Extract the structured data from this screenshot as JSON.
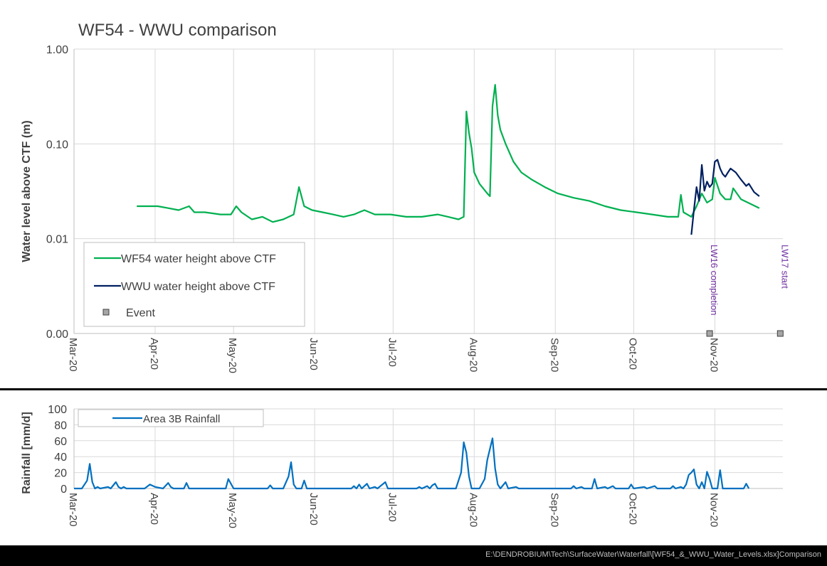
{
  "chart_data": [
    {
      "type": "line",
      "title": "WF54 - WWU comparison",
      "ylabel": "Water level above CTF (m)",
      "xlabel": "",
      "y_scale": "log",
      "ylim": [
        0.001,
        1.0
      ],
      "y_ticks": [
        {
          "value": 1.0,
          "label": "1.00"
        },
        {
          "value": 0.1,
          "label": "0.10"
        },
        {
          "value": 0.01,
          "label": "0.01"
        },
        {
          "value": 0.001,
          "label": "0.00"
        }
      ],
      "xlim": [
        "2020-03-01",
        "2020-11-27"
      ],
      "x_ticks": [
        {
          "date": "2020-03-01",
          "label": "Mar-20"
        },
        {
          "date": "2020-04-01",
          "label": "Apr-20"
        },
        {
          "date": "2020-05-01",
          "label": "May-20"
        },
        {
          "date": "2020-06-01",
          "label": "Jun-20"
        },
        {
          "date": "2020-07-01",
          "label": "Jul-20"
        },
        {
          "date": "2020-08-01",
          "label": "Aug-20"
        },
        {
          "date": "2020-09-01",
          "label": "Sep-20"
        },
        {
          "date": "2020-10-01",
          "label": "Oct-20"
        },
        {
          "date": "2020-11-01",
          "label": "Nov-20"
        }
      ],
      "grid": true,
      "legend_position": "bottom-left",
      "series": [
        {
          "name": "WF54 water height above CTF",
          "color": "#00b050",
          "points": [
            [
              "2020-03-25",
              0.022
            ],
            [
              "2020-03-29",
              0.022
            ],
            [
              "2020-04-02",
              0.022
            ],
            [
              "2020-04-06",
              0.021
            ],
            [
              "2020-04-10",
              0.02
            ],
            [
              "2020-04-14",
              0.022
            ],
            [
              "2020-04-16",
              0.019
            ],
            [
              "2020-04-20",
              0.019
            ],
            [
              "2020-04-26",
              0.018
            ],
            [
              "2020-04-30",
              0.018
            ],
            [
              "2020-05-02",
              0.022
            ],
            [
              "2020-05-04",
              0.019
            ],
            [
              "2020-05-08",
              0.016
            ],
            [
              "2020-05-12",
              0.017
            ],
            [
              "2020-05-16",
              0.015
            ],
            [
              "2020-05-20",
              0.016
            ],
            [
              "2020-05-24",
              0.018
            ],
            [
              "2020-05-26",
              0.035
            ],
            [
              "2020-05-28",
              0.022
            ],
            [
              "2020-05-31",
              0.02
            ],
            [
              "2020-06-04",
              0.019
            ],
            [
              "2020-06-08",
              0.018
            ],
            [
              "2020-06-12",
              0.017
            ],
            [
              "2020-06-16",
              0.018
            ],
            [
              "2020-06-20",
              0.02
            ],
            [
              "2020-06-24",
              0.018
            ],
            [
              "2020-06-30",
              0.018
            ],
            [
              "2020-07-06",
              0.017
            ],
            [
              "2020-07-12",
              0.017
            ],
            [
              "2020-07-18",
              0.018
            ],
            [
              "2020-07-22",
              0.017
            ],
            [
              "2020-07-26",
              0.016
            ],
            [
              "2020-07-28",
              0.017
            ],
            [
              "2020-07-29",
              0.22
            ],
            [
              "2020-07-30",
              0.13
            ],
            [
              "2020-07-31",
              0.09
            ],
            [
              "2020-08-01",
              0.05
            ],
            [
              "2020-08-03",
              0.038
            ],
            [
              "2020-08-06",
              0.03
            ],
            [
              "2020-08-07",
              0.028
            ],
            [
              "2020-08-08",
              0.25
            ],
            [
              "2020-08-09",
              0.42
            ],
            [
              "2020-08-10",
              0.2
            ],
            [
              "2020-08-11",
              0.14
            ],
            [
              "2020-08-13",
              0.1
            ],
            [
              "2020-08-16",
              0.065
            ],
            [
              "2020-08-19",
              0.05
            ],
            [
              "2020-08-23",
              0.042
            ],
            [
              "2020-08-28",
              0.035
            ],
            [
              "2020-09-02",
              0.03
            ],
            [
              "2020-09-08",
              0.027
            ],
            [
              "2020-09-14",
              0.025
            ],
            [
              "2020-09-20",
              0.022
            ],
            [
              "2020-09-26",
              0.02
            ],
            [
              "2020-10-02",
              0.019
            ],
            [
              "2020-10-08",
              0.018
            ],
            [
              "2020-10-14",
              0.017
            ],
            [
              "2020-10-18",
              0.017
            ],
            [
              "2020-10-19",
              0.029
            ],
            [
              "2020-10-20",
              0.019
            ],
            [
              "2020-10-23",
              0.017
            ],
            [
              "2020-10-25",
              0.022
            ],
            [
              "2020-10-27",
              0.03
            ],
            [
              "2020-10-29",
              0.024
            ],
            [
              "2020-10-31",
              0.026
            ],
            [
              "2020-11-01",
              0.044
            ],
            [
              "2020-11-03",
              0.03
            ],
            [
              "2020-11-05",
              0.026
            ],
            [
              "2020-11-07",
              0.026
            ],
            [
              "2020-11-08",
              0.034
            ],
            [
              "2020-11-11",
              0.026
            ],
            [
              "2020-11-15",
              0.023
            ],
            [
              "2020-11-18",
              0.021
            ]
          ]
        },
        {
          "name": "WWU water height above CTF",
          "color": "#002060",
          "points": [
            [
              "2020-10-23",
              0.011
            ],
            [
              "2020-10-24",
              0.02
            ],
            [
              "2020-10-25",
              0.035
            ],
            [
              "2020-10-26",
              0.025
            ],
            [
              "2020-10-27",
              0.06
            ],
            [
              "2020-10-28",
              0.032
            ],
            [
              "2020-10-29",
              0.04
            ],
            [
              "2020-10-30",
              0.035
            ],
            [
              "2020-10-31",
              0.038
            ],
            [
              "2020-11-01",
              0.065
            ],
            [
              "2020-11-02",
              0.068
            ],
            [
              "2020-11-03",
              0.055
            ],
            [
              "2020-11-04",
              0.048
            ],
            [
              "2020-11-05",
              0.045
            ],
            [
              "2020-11-06",
              0.05
            ],
            [
              "2020-11-07",
              0.055
            ],
            [
              "2020-11-09",
              0.05
            ],
            [
              "2020-11-11",
              0.042
            ],
            [
              "2020-11-13",
              0.036
            ],
            [
              "2020-11-14",
              0.038
            ],
            [
              "2020-11-16",
              0.031
            ],
            [
              "2020-11-18",
              0.028
            ]
          ]
        },
        {
          "name": "Event",
          "color": "#a6a6a6",
          "marker": "square",
          "points": [
            [
              "2020-10-30",
              0.001
            ],
            [
              "2020-11-26",
              0.001
            ]
          ]
        }
      ],
      "annotations": [
        {
          "text": "LW16 completion",
          "date": "2020-10-30",
          "color": "#7030a0"
        },
        {
          "text": "LW17 start",
          "date": "2020-11-26",
          "color": "#7030a0"
        }
      ]
    },
    {
      "type": "line",
      "title": "",
      "ylabel": "Rainfall [mm/d]",
      "xlabel": "",
      "ylim": [
        0,
        100
      ],
      "y_ticks": [
        0,
        20,
        40,
        60,
        80,
        100
      ],
      "xlim": [
        "2020-03-01",
        "2020-11-27"
      ],
      "x_ticks": [
        {
          "date": "2020-03-01",
          "label": "Mar-20"
        },
        {
          "date": "2020-04-01",
          "label": "Apr-20"
        },
        {
          "date": "2020-05-01",
          "label": "May-20"
        },
        {
          "date": "2020-06-01",
          "label": "Jun-20"
        },
        {
          "date": "2020-07-01",
          "label": "Jul-20"
        },
        {
          "date": "2020-08-01",
          "label": "Aug-20"
        },
        {
          "date": "2020-09-01",
          "label": "Sep-20"
        },
        {
          "date": "2020-10-01",
          "label": "Oct-20"
        },
        {
          "date": "2020-11-01",
          "label": "Nov-20"
        }
      ],
      "grid": true,
      "legend_position": "top-left",
      "series": [
        {
          "name": "Area 3B Rainfall",
          "color": "#0070c0",
          "points": [
            [
              "2020-03-01",
              0
            ],
            [
              "2020-03-04",
              0
            ],
            [
              "2020-03-06",
              10
            ],
            [
              "2020-03-07",
              31
            ],
            [
              "2020-03-08",
              8
            ],
            [
              "2020-03-09",
              0
            ],
            [
              "2020-03-10",
              2
            ],
            [
              "2020-03-11",
              0
            ],
            [
              "2020-03-14",
              2
            ],
            [
              "2020-03-15",
              0
            ],
            [
              "2020-03-17",
              8
            ],
            [
              "2020-03-18",
              2
            ],
            [
              "2020-03-19",
              0
            ],
            [
              "2020-03-20",
              2
            ],
            [
              "2020-03-21",
              0
            ],
            [
              "2020-03-28",
              0
            ],
            [
              "2020-03-30",
              5
            ],
            [
              "2020-04-01",
              2
            ],
            [
              "2020-04-04",
              0
            ],
            [
              "2020-04-06",
              7
            ],
            [
              "2020-04-07",
              2
            ],
            [
              "2020-04-08",
              0
            ],
            [
              "2020-04-12",
              0
            ],
            [
              "2020-04-13",
              7
            ],
            [
              "2020-04-14",
              0
            ],
            [
              "2020-04-28",
              0
            ],
            [
              "2020-04-29",
              12
            ],
            [
              "2020-04-30",
              6
            ],
            [
              "2020-05-01",
              0
            ],
            [
              "2020-05-14",
              0
            ],
            [
              "2020-05-15",
              4
            ],
            [
              "2020-05-16",
              0
            ],
            [
              "2020-05-20",
              0
            ],
            [
              "2020-05-22",
              15
            ],
            [
              "2020-05-23",
              33
            ],
            [
              "2020-05-24",
              5
            ],
            [
              "2020-05-25",
              0
            ],
            [
              "2020-05-27",
              0
            ],
            [
              "2020-05-28",
              10
            ],
            [
              "2020-05-29",
              0
            ],
            [
              "2020-06-15",
              0
            ],
            [
              "2020-06-16",
              3
            ],
            [
              "2020-06-17",
              0
            ],
            [
              "2020-06-18",
              5
            ],
            [
              "2020-06-19",
              0
            ],
            [
              "2020-06-21",
              6
            ],
            [
              "2020-06-22",
              0
            ],
            [
              "2020-06-24",
              2
            ],
            [
              "2020-06-25",
              0
            ],
            [
              "2020-06-28",
              8
            ],
            [
              "2020-06-29",
              0
            ],
            [
              "2020-07-10",
              0
            ],
            [
              "2020-07-11",
              2
            ],
            [
              "2020-07-12",
              0
            ],
            [
              "2020-07-14",
              3
            ],
            [
              "2020-07-15",
              0
            ],
            [
              "2020-07-16",
              4
            ],
            [
              "2020-07-17",
              6
            ],
            [
              "2020-07-18",
              0
            ],
            [
              "2020-07-25",
              0
            ],
            [
              "2020-07-27",
              20
            ],
            [
              "2020-07-28",
              58
            ],
            [
              "2020-07-29",
              45
            ],
            [
              "2020-07-30",
              15
            ],
            [
              "2020-07-31",
              0
            ],
            [
              "2020-08-03",
              0
            ],
            [
              "2020-08-05",
              12
            ],
            [
              "2020-08-06",
              36
            ],
            [
              "2020-08-08",
              63
            ],
            [
              "2020-08-09",
              25
            ],
            [
              "2020-08-10",
              5
            ],
            [
              "2020-08-11",
              0
            ],
            [
              "2020-08-13",
              8
            ],
            [
              "2020-08-14",
              0
            ],
            [
              "2020-08-17",
              2
            ],
            [
              "2020-08-18",
              0
            ],
            [
              "2020-09-07",
              0
            ],
            [
              "2020-09-08",
              3
            ],
            [
              "2020-09-09",
              0
            ],
            [
              "2020-09-11",
              2
            ],
            [
              "2020-09-12",
              0
            ],
            [
              "2020-09-15",
              0
            ],
            [
              "2020-09-16",
              12
            ],
            [
              "2020-09-17",
              0
            ],
            [
              "2020-09-20",
              2
            ],
            [
              "2020-09-21",
              0
            ],
            [
              "2020-09-23",
              3
            ],
            [
              "2020-09-24",
              0
            ],
            [
              "2020-09-29",
              0
            ],
            [
              "2020-09-30",
              5
            ],
            [
              "2020-10-01",
              0
            ],
            [
              "2020-10-05",
              2
            ],
            [
              "2020-10-06",
              0
            ],
            [
              "2020-10-09",
              3
            ],
            [
              "2020-10-10",
              0
            ],
            [
              "2020-10-15",
              0
            ],
            [
              "2020-10-16",
              3
            ],
            [
              "2020-10-17",
              0
            ],
            [
              "2020-10-19",
              2
            ],
            [
              "2020-10-20",
              0
            ],
            [
              "2020-10-21",
              5
            ],
            [
              "2020-10-22",
              17
            ],
            [
              "2020-10-23",
              20
            ],
            [
              "2020-10-24",
              24
            ],
            [
              "2020-10-25",
              5
            ],
            [
              "2020-10-26",
              0
            ],
            [
              "2020-10-27",
              8
            ],
            [
              "2020-10-28",
              0
            ],
            [
              "2020-10-29",
              21
            ],
            [
              "2020-10-30",
              12
            ],
            [
              "2020-10-31",
              0
            ],
            [
              "2020-11-02",
              0
            ],
            [
              "2020-11-03",
              23
            ],
            [
              "2020-11-04",
              0
            ],
            [
              "2020-11-12",
              0
            ],
            [
              "2020-11-13",
              6
            ],
            [
              "2020-11-14",
              0
            ]
          ]
        }
      ]
    }
  ],
  "footer": {
    "path": "E:\\DENDROBIUM\\Tech\\SurfaceWater\\Waterfall\\[WF54_&_WWU_Water_Levels.xlsx]Comparison"
  }
}
